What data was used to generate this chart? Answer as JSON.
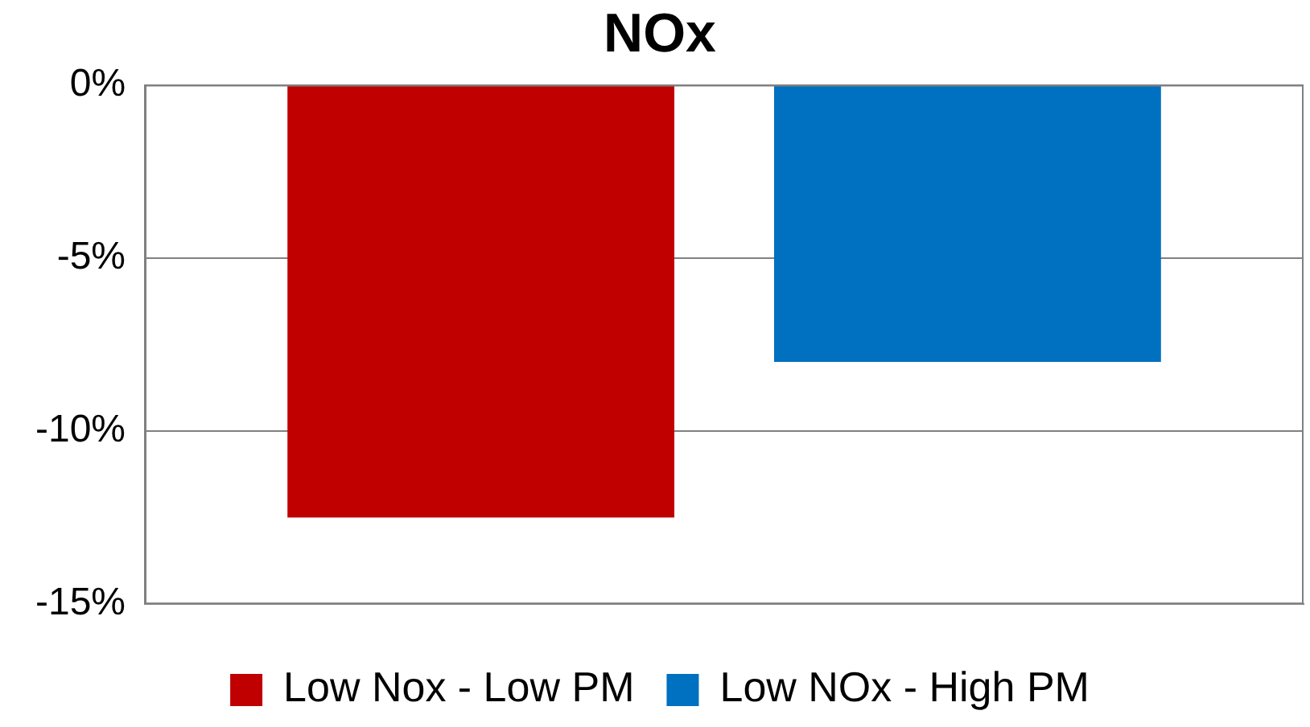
{
  "chart_data": {
    "type": "bar",
    "title": "NOx",
    "categories": [
      null
    ],
    "series": [
      {
        "name": "Low Nox - Low PM",
        "color": "#c00000",
        "values": [
          -12.5
        ]
      },
      {
        "name": "Low NOx - High PM",
        "color": "#0070c0",
        "values": [
          -8
        ]
      }
    ],
    "ylim": [
      -15,
      0
    ],
    "yticks": [
      {
        "value": -15,
        "label": "-15%"
      },
      {
        "value": -10,
        "label": "-10%"
      },
      {
        "value": -5,
        "label": "-5%"
      },
      {
        "value": 0,
        "label": "0%"
      }
    ],
    "grid": "y",
    "legend": "bottom"
  }
}
